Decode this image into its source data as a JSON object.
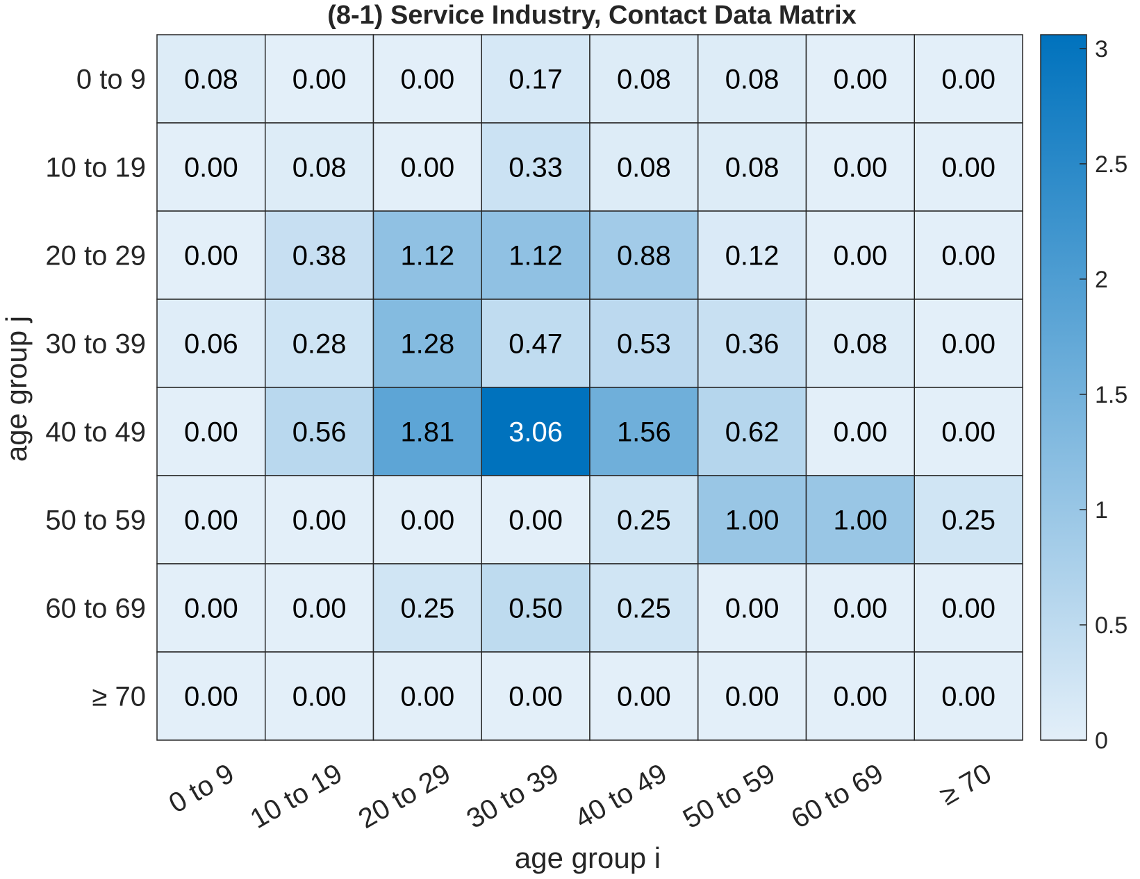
{
  "chart_data": {
    "type": "heatmap",
    "title": "(8-1) Service Industry, Contact Data Matrix",
    "xlabel": "age group i",
    "ylabel": "age group j",
    "x_categories": [
      "0 to 9",
      "10 to 19",
      "20 to 29",
      "30 to 39",
      "40 to 49",
      "50 to 59",
      "60 to 69",
      "≥ 70"
    ],
    "y_categories": [
      "0 to 9",
      "10 to 19",
      "20 to 29",
      "30 to 39",
      "40 to 49",
      "50 to 59",
      "60 to 69",
      "≥ 70"
    ],
    "values": [
      [
        0.08,
        0.0,
        0.0,
        0.17,
        0.08,
        0.08,
        0.0,
        0.0
      ],
      [
        0.0,
        0.08,
        0.0,
        0.33,
        0.08,
        0.08,
        0.0,
        0.0
      ],
      [
        0.0,
        0.38,
        1.12,
        1.12,
        0.88,
        0.12,
        0.0,
        0.0
      ],
      [
        0.06,
        0.28,
        1.28,
        0.47,
        0.53,
        0.36,
        0.08,
        0.0
      ],
      [
        0.0,
        0.56,
        1.81,
        3.06,
        1.56,
        0.62,
        0.0,
        0.0
      ],
      [
        0.0,
        0.0,
        0.0,
        0.0,
        0.25,
        1.0,
        1.0,
        0.25
      ],
      [
        0.0,
        0.0,
        0.25,
        0.5,
        0.25,
        0.0,
        0.0,
        0.0
      ],
      [
        0.0,
        0.0,
        0.0,
        0.0,
        0.0,
        0.0,
        0.0,
        0.0
      ]
    ],
    "colorbar": {
      "ticks": [
        0,
        0.5,
        1,
        1.5,
        2,
        2.5,
        3
      ],
      "tick_labels": [
        "0",
        "0.5",
        "1",
        "1.5",
        "2",
        "2.5",
        "3"
      ],
      "range": [
        0,
        3.06
      ],
      "placement": "right"
    },
    "colors": {
      "low": "#e3eff9",
      "high": "#0072bd",
      "grid": "#262626",
      "text_dark": "#000000",
      "text_light": "#ffffff"
    },
    "grid": true
  }
}
